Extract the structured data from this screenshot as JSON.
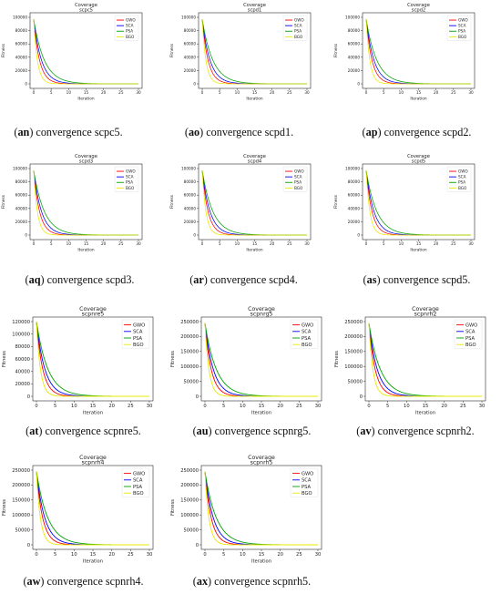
{
  "colors": {
    "GWO": "#ff0000",
    "SCA": "#0000ff",
    "PSA": "#00a000",
    "BGO": "#e8e800"
  },
  "panels": [
    {
      "caption_id": "an",
      "caption_text": "convergence scpc5.",
      "chart_data": {
        "type": "line",
        "title": "Coverage",
        "subtitle": "scpc5",
        "xlabel": "Iteration",
        "ylabel": "Fitness",
        "xlim": [
          0,
          30
        ],
        "ylim": [
          0,
          100000
        ],
        "xticks": [
          0,
          5,
          10,
          15,
          20,
          25,
          30
        ],
        "yticks": [
          0,
          20000,
          40000,
          60000,
          80000,
          100000
        ],
        "ytick_labels": [
          "0",
          "20000",
          "40000",
          "60000",
          "80000",
          "100000"
        ],
        "legend": "top-right",
        "series": [
          {
            "name": "GWO",
            "start": 97000,
            "decay": 0.6
          },
          {
            "name": "SCA",
            "start": 97000,
            "decay": 0.45
          },
          {
            "name": "PSA",
            "start": 97000,
            "decay": 0.33
          },
          {
            "name": "BGO",
            "start": 97000,
            "decay": 0.95
          }
        ]
      }
    },
    {
      "caption_id": "ao",
      "caption_text": "convergence scpd1.",
      "chart_data": {
        "type": "line",
        "title": "Coverage",
        "subtitle": "scpd1",
        "xlabel": "Iteration",
        "ylabel": "Fitness",
        "xlim": [
          0,
          30
        ],
        "ylim": [
          0,
          100000
        ],
        "xticks": [
          0,
          5,
          10,
          15,
          20,
          25,
          30
        ],
        "yticks": [
          0,
          20000,
          40000,
          60000,
          80000,
          100000
        ],
        "ytick_labels": [
          "0",
          "20000",
          "40000",
          "60000",
          "80000",
          "100000"
        ],
        "legend": "top-right",
        "series": [
          {
            "name": "GWO",
            "start": 97000,
            "decay": 0.6
          },
          {
            "name": "SCA",
            "start": 97000,
            "decay": 0.45
          },
          {
            "name": "PSA",
            "start": 97000,
            "decay": 0.33
          },
          {
            "name": "BGO",
            "start": 97000,
            "decay": 0.95
          }
        ]
      }
    },
    {
      "caption_id": "ap",
      "caption_text": "convergence scpd2.",
      "chart_data": {
        "type": "line",
        "title": "Coverage",
        "subtitle": "scpd2",
        "xlabel": "Iteration",
        "ylabel": "Fitness",
        "xlim": [
          0,
          30
        ],
        "ylim": [
          0,
          100000
        ],
        "xticks": [
          0,
          5,
          10,
          15,
          20,
          25,
          30
        ],
        "yticks": [
          0,
          20000,
          40000,
          60000,
          80000,
          100000
        ],
        "ytick_labels": [
          "0",
          "20000",
          "40000",
          "60000",
          "80000",
          "100000"
        ],
        "legend": "top-right",
        "series": [
          {
            "name": "GWO",
            "start": 97000,
            "decay": 0.6
          },
          {
            "name": "SCA",
            "start": 97000,
            "decay": 0.45
          },
          {
            "name": "PSA",
            "start": 97000,
            "decay": 0.33
          },
          {
            "name": "BGO",
            "start": 97000,
            "decay": 0.95
          }
        ]
      }
    },
    {
      "caption_id": "aq",
      "caption_text": "convergence scpd3.",
      "chart_data": {
        "type": "line",
        "title": "Coverage",
        "subtitle": "scpd3",
        "xlabel": "Iteration",
        "ylabel": "Fitness",
        "xlim": [
          0,
          30
        ],
        "ylim": [
          0,
          100000
        ],
        "xticks": [
          0,
          5,
          10,
          15,
          20,
          25,
          30
        ],
        "yticks": [
          0,
          20000,
          40000,
          60000,
          80000,
          100000
        ],
        "ytick_labels": [
          "0",
          "20000",
          "40000",
          "60000",
          "80000",
          "100000"
        ],
        "legend": "top-right",
        "series": [
          {
            "name": "GWO",
            "start": 97000,
            "decay": 0.6
          },
          {
            "name": "SCA",
            "start": 97000,
            "decay": 0.45
          },
          {
            "name": "PSA",
            "start": 97000,
            "decay": 0.33
          },
          {
            "name": "BGO",
            "start": 97000,
            "decay": 0.95
          }
        ]
      }
    },
    {
      "caption_id": "ar",
      "caption_text": "convergence scpd4.",
      "chart_data": {
        "type": "line",
        "title": "Coverage",
        "subtitle": "scpd4",
        "xlabel": "Iteration",
        "ylabel": "Fitness",
        "xlim": [
          0,
          30
        ],
        "ylim": [
          0,
          100000
        ],
        "xticks": [
          0,
          5,
          10,
          15,
          20,
          25,
          30
        ],
        "yticks": [
          0,
          20000,
          40000,
          60000,
          80000,
          100000
        ],
        "ytick_labels": [
          "0",
          "20000",
          "40000",
          "60000",
          "80000",
          "100000"
        ],
        "legend": "top-right",
        "series": [
          {
            "name": "GWO",
            "start": 97000,
            "decay": 0.6
          },
          {
            "name": "SCA",
            "start": 97000,
            "decay": 0.45
          },
          {
            "name": "PSA",
            "start": 97000,
            "decay": 0.33
          },
          {
            "name": "BGO",
            "start": 97000,
            "decay": 0.95
          }
        ]
      }
    },
    {
      "caption_id": "as",
      "caption_text": "convergence scpd5.",
      "chart_data": {
        "type": "line",
        "title": "Coverage",
        "subtitle": "scpd5",
        "xlabel": "Iteration",
        "ylabel": "Fitness",
        "xlim": [
          0,
          30
        ],
        "ylim": [
          0,
          100000
        ],
        "xticks": [
          0,
          5,
          10,
          15,
          20,
          25,
          30
        ],
        "yticks": [
          0,
          20000,
          40000,
          60000,
          80000,
          100000
        ],
        "ytick_labels": [
          "0",
          "20000",
          "40000",
          "60000",
          "80000",
          "100000"
        ],
        "legend": "top-right",
        "series": [
          {
            "name": "GWO",
            "start": 97000,
            "decay": 0.6
          },
          {
            "name": "SCA",
            "start": 97000,
            "decay": 0.45
          },
          {
            "name": "PSA",
            "start": 97000,
            "decay": 0.33
          },
          {
            "name": "BGO",
            "start": 97000,
            "decay": 0.95
          }
        ]
      }
    },
    {
      "caption_id": "at",
      "caption_text": "convergence scpnre5.",
      "chart_data": {
        "type": "line",
        "title": "Coverage",
        "subtitle": "scpnre5",
        "xlabel": "Iteration",
        "ylabel": "Fitness",
        "xlim": [
          0,
          30
        ],
        "ylim": [
          0,
          120000
        ],
        "xticks": [
          0,
          5,
          10,
          15,
          20,
          25,
          30
        ],
        "yticks": [
          0,
          20000,
          40000,
          60000,
          80000,
          100000,
          120000
        ],
        "ytick_labels": [
          "0",
          "20000",
          "40000",
          "60000",
          "80000",
          "100000",
          "120000"
        ],
        "legend": "top-right",
        "series": [
          {
            "name": "GWO",
            "start": 120000,
            "decay": 0.6
          },
          {
            "name": "SCA",
            "start": 120000,
            "decay": 0.45
          },
          {
            "name": "PSA",
            "start": 120000,
            "decay": 0.33
          },
          {
            "name": "BGO",
            "start": 120000,
            "decay": 0.95
          }
        ]
      }
    },
    {
      "caption_id": "au",
      "caption_text": "convergence scpnrg5.",
      "chart_data": {
        "type": "line",
        "title": "Coverage",
        "subtitle": "scpnrg5",
        "xlabel": "Iteration",
        "ylabel": "Fitness",
        "xlim": [
          0,
          30
        ],
        "ylim": [
          0,
          250000
        ],
        "xticks": [
          0,
          5,
          10,
          15,
          20,
          25,
          30
        ],
        "yticks": [
          0,
          50000,
          100000,
          150000,
          200000,
          250000
        ],
        "ytick_labels": [
          "0",
          "50000",
          "100000",
          "150000",
          "200000",
          "250000"
        ],
        "legend": "top-right",
        "series": [
          {
            "name": "GWO",
            "start": 245000,
            "decay": 0.6
          },
          {
            "name": "SCA",
            "start": 245000,
            "decay": 0.45
          },
          {
            "name": "PSA",
            "start": 245000,
            "decay": 0.33
          },
          {
            "name": "BGO",
            "start": 245000,
            "decay": 0.95
          }
        ]
      }
    },
    {
      "caption_id": "av",
      "caption_text": "convergence scpnrh2.",
      "chart_data": {
        "type": "line",
        "title": "Coverage",
        "subtitle": "scpnrh2",
        "xlabel": "Iteration",
        "ylabel": "Fitness",
        "xlim": [
          0,
          30
        ],
        "ylim": [
          0,
          250000
        ],
        "xticks": [
          0,
          5,
          10,
          15,
          20,
          25,
          30
        ],
        "yticks": [
          0,
          50000,
          100000,
          150000,
          200000,
          250000
        ],
        "ytick_labels": [
          "0",
          "50000",
          "100000",
          "150000",
          "200000",
          "250000"
        ],
        "legend": "top-right",
        "series": [
          {
            "name": "GWO",
            "start": 245000,
            "decay": 0.6
          },
          {
            "name": "SCA",
            "start": 245000,
            "decay": 0.45
          },
          {
            "name": "PSA",
            "start": 245000,
            "decay": 0.33
          },
          {
            "name": "BGO",
            "start": 245000,
            "decay": 0.95
          }
        ]
      }
    },
    {
      "caption_id": "aw",
      "caption_text": "convergence scpnrh4.",
      "chart_data": {
        "type": "line",
        "title": "Coverage",
        "subtitle": "scpnrh4",
        "xlabel": "Iteration",
        "ylabel": "Fitness",
        "xlim": [
          0,
          30
        ],
        "ylim": [
          0,
          250000
        ],
        "xticks": [
          0,
          5,
          10,
          15,
          20,
          25,
          30
        ],
        "yticks": [
          0,
          50000,
          100000,
          150000,
          200000,
          250000
        ],
        "ytick_labels": [
          "0",
          "50000",
          "100000",
          "150000",
          "200000",
          "250000"
        ],
        "legend": "top-right",
        "series": [
          {
            "name": "GWO",
            "start": 245000,
            "decay": 0.6
          },
          {
            "name": "SCA",
            "start": 245000,
            "decay": 0.45
          },
          {
            "name": "PSA",
            "start": 245000,
            "decay": 0.33
          },
          {
            "name": "BGO",
            "start": 245000,
            "decay": 0.95
          }
        ]
      }
    },
    {
      "caption_id": "ax",
      "caption_text": "convergence scpnrh5.",
      "chart_data": {
        "type": "line",
        "title": "Coverage",
        "subtitle": "scpnrh5",
        "xlabel": "Iteration",
        "ylabel": "Fitness",
        "xlim": [
          0,
          30
        ],
        "ylim": [
          0,
          250000
        ],
        "xticks": [
          0,
          5,
          10,
          15,
          20,
          25,
          30
        ],
        "yticks": [
          0,
          50000,
          100000,
          150000,
          200000,
          250000
        ],
        "ytick_labels": [
          "0",
          "50000",
          "100000",
          "150000",
          "200000",
          "250000"
        ],
        "legend": "top-right",
        "series": [
          {
            "name": "GWO",
            "start": 245000,
            "decay": 0.6
          },
          {
            "name": "SCA",
            "start": 245000,
            "decay": 0.45
          },
          {
            "name": "PSA",
            "start": 245000,
            "decay": 0.33
          },
          {
            "name": "BGO",
            "start": 245000,
            "decay": 0.95
          }
        ]
      }
    }
  ]
}
